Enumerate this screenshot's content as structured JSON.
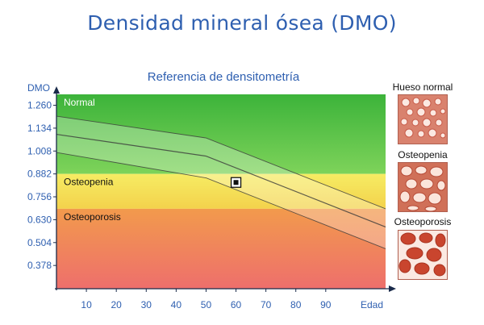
{
  "title": "Densidad mineral ósea (DMO)",
  "chart_data": {
    "type": "area",
    "title": "Referencia de densitometría",
    "ylabel": "DMO",
    "xlabel": "Edad",
    "xlim": [
      0,
      110
    ],
    "ylim": [
      0.25,
      1.32
    ],
    "x_ticks": [
      10,
      20,
      30,
      40,
      50,
      60,
      70,
      80,
      90
    ],
    "y_ticks": [
      "1.260",
      "1.134",
      "1.008",
      "0.882",
      "0.756",
      "0.630",
      "0.504",
      "0.378"
    ],
    "y_tick_values": [
      1.26,
      1.134,
      1.008,
      0.882,
      0.756,
      0.63,
      0.504,
      0.378
    ],
    "zones": [
      {
        "name": "Normal",
        "from": 0.882,
        "to": 1.32,
        "color": "#4cba3a"
      },
      {
        "name": "Osteopenia",
        "from": 0.69,
        "to": 0.882,
        "color": "#f5e654"
      },
      {
        "name": "Osteoporosis",
        "from": 0.25,
        "to": 0.69,
        "color": "#f08a52"
      }
    ],
    "series": [
      {
        "role": "upper",
        "x": [
          0,
          50,
          110
        ],
        "y": [
          1.2,
          1.08,
          0.69
        ]
      },
      {
        "role": "mean",
        "x": [
          0,
          50,
          110
        ],
        "y": [
          1.1,
          0.98,
          0.59
        ]
      },
      {
        "role": "lower",
        "x": [
          0,
          50,
          110
        ],
        "y": [
          1.0,
          0.86,
          0.47
        ]
      }
    ],
    "point": {
      "x": 60,
      "y": 0.835
    },
    "grid": false
  },
  "panel": {
    "items": [
      {
        "label": "Hueso normal"
      },
      {
        "label": "Osteopenia"
      },
      {
        "label": "Osteoporosis"
      }
    ]
  }
}
